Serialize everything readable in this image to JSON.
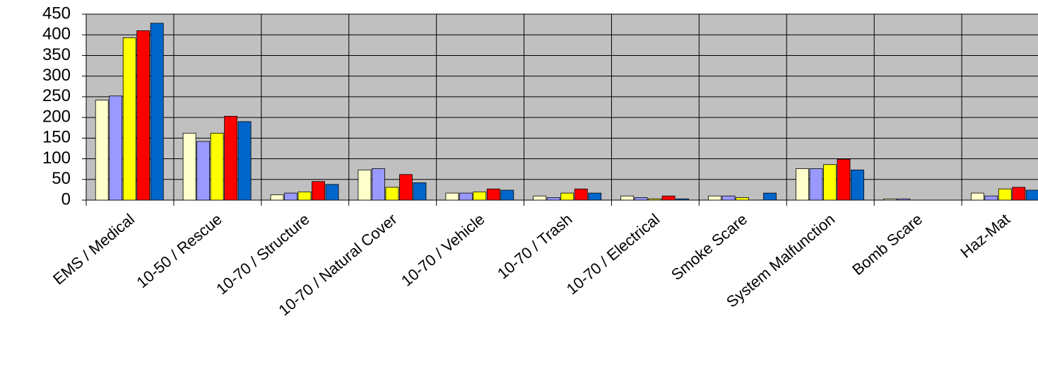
{
  "chart_data": {
    "type": "bar",
    "categories": [
      "EMS / Medical",
      "10-50 / Rescue",
      "10-70 / Structure",
      "10-70 / Natural Cover",
      "10-70 / Vehicle",
      "10-70 / Trash",
      "10-70 / Electrical",
      "Smoke Scare",
      "System Malfunction",
      "Bomb Scare",
      "Haz-Mat"
    ],
    "series": [
      {
        "color": "#ffffcc",
        "values": [
          242,
          162,
          13,
          73,
          17,
          10,
          10,
          10,
          76,
          3,
          17
        ]
      },
      {
        "color": "#9999ff",
        "values": [
          252,
          142,
          17,
          76,
          17,
          6,
          6,
          10,
          76,
          3,
          10
        ]
      },
      {
        "color": "#ffff00",
        "values": [
          393,
          162,
          20,
          31,
          20,
          17,
          3,
          6,
          86,
          0,
          27
        ]
      },
      {
        "color": "#ff0000",
        "values": [
          410,
          203,
          45,
          62,
          27,
          27,
          10,
          0,
          99,
          0,
          31
        ]
      },
      {
        "color": "#0066cc",
        "values": [
          428,
          190,
          38,
          42,
          24,
          17,
          3,
          17,
          73,
          0,
          24
        ]
      }
    ],
    "ylim": [
      0,
      450
    ],
    "yticks": [
      0,
      50,
      100,
      150,
      200,
      250,
      300,
      350,
      400,
      450
    ],
    "grid": true,
    "background": "#c0c0c0"
  }
}
